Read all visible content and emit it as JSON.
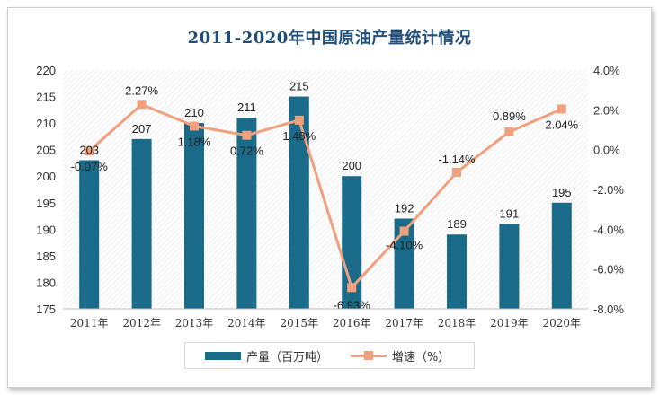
{
  "chart_data": {
    "type": "bar+line",
    "title": "2011-2020年中国原油产量统计情况",
    "categories": [
      "2011年",
      "2012年",
      "2013年",
      "2014年",
      "2015年",
      "2016年",
      "2017年",
      "2018年",
      "2019年",
      "2020年"
    ],
    "series": [
      {
        "name": "产量（百万吨）",
        "type": "bar",
        "axis": "left",
        "color": "#1a6b8a",
        "values": [
          203,
          207,
          210,
          211,
          215,
          200,
          192,
          189,
          191,
          195
        ],
        "labels": [
          "203",
          "207",
          "210",
          "211",
          "215",
          "200",
          "192",
          "189",
          "191",
          "195"
        ]
      },
      {
        "name": "增速（%）",
        "type": "line",
        "axis": "right",
        "color": "#f0a07c",
        "values": [
          -0.07,
          2.27,
          1.18,
          0.72,
          1.48,
          -6.93,
          -4.1,
          -1.14,
          0.89,
          2.04
        ],
        "labels": [
          "-0.07%",
          "2.27%",
          "1.18%",
          "0.72%",
          "1.48%",
          "-6.93%",
          "-4.10%",
          "-1.14%",
          "0.89%",
          "2.04%"
        ]
      }
    ],
    "y_left": {
      "ylim": [
        175,
        220
      ],
      "ticks": [
        "175",
        "180",
        "185",
        "190",
        "195",
        "200",
        "205",
        "210",
        "215",
        "220"
      ]
    },
    "y_right": {
      "ylim": [
        -8,
        4
      ],
      "ticks": [
        "-8.0%",
        "-6.0%",
        "-4.0%",
        "-2.0%",
        "0.0%",
        "2.0%",
        "4.0%"
      ]
    },
    "grid": false,
    "legend_position": "bottom-center"
  }
}
